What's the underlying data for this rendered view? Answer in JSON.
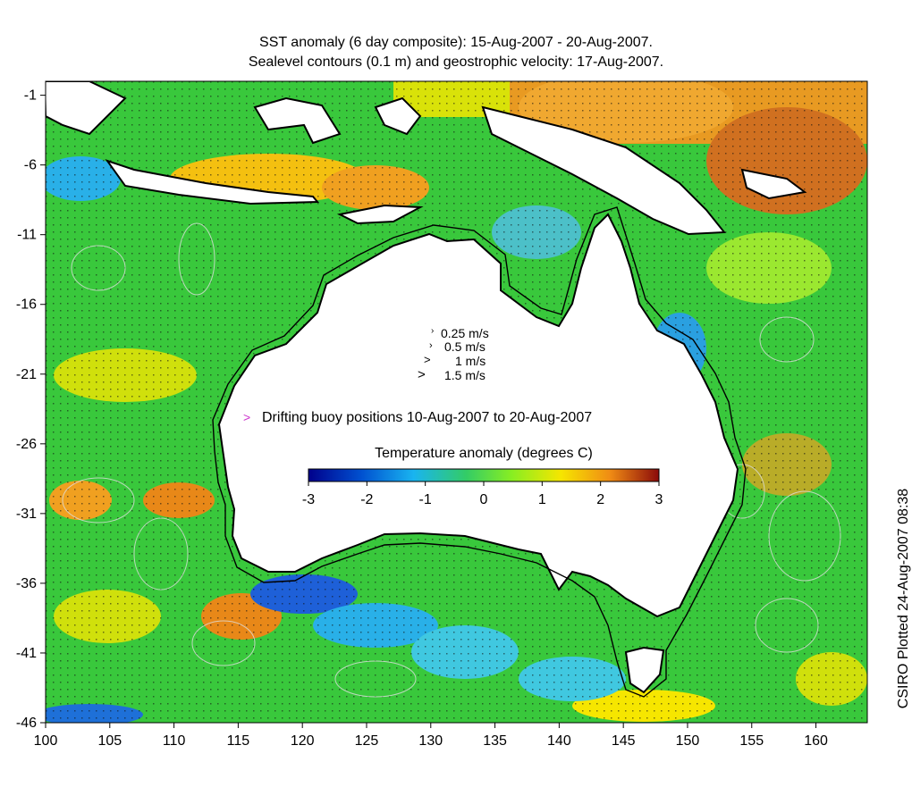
{
  "title": {
    "line1": "SST anomaly (6 day composite): 15-Aug-2007 - 20-Aug-2007.",
    "line2": "Sealevel contours (0.1 m) and geostrophic velocity: 17-Aug-2007."
  },
  "x_ticks": [
    "100",
    "105",
    "110",
    "115",
    "120",
    "125",
    "130",
    "135",
    "140",
    "145",
    "150",
    "155",
    "160"
  ],
  "y_ticks": [
    "-1",
    "-6",
    "-11",
    "-16",
    "-21",
    "-26",
    "-31",
    "-36",
    "-41",
    "-46"
  ],
  "velocity_legend": [
    "0.25 m/s",
    "0.5 m/s",
    "1 m/s",
    "1.5 m/s"
  ],
  "buoy_legend": {
    "marker": ">",
    "label": "Drifting buoy positions 10-Aug-2007 to 20-Aug-2007",
    "color": "#cc33cc"
  },
  "colorbar": {
    "title": "Temperature anomaly (degrees C)",
    "ticks": [
      "-3",
      "-2",
      "-1",
      "0",
      "1",
      "2",
      "3"
    ],
    "range": [
      -3,
      3
    ],
    "colors": [
      "#00008b",
      "#0050d0",
      "#19b4f0",
      "#33cc66",
      "#88ee22",
      "#f6e600",
      "#f08c14",
      "#8b0a0a"
    ]
  },
  "credit": "CSIRO Plotted 24-Aug-2007 08:38",
  "colors": {
    "ocean_green": "#39c83c",
    "land": "#ffffff",
    "coast": "#000000",
    "contour": "#dddddd"
  }
}
